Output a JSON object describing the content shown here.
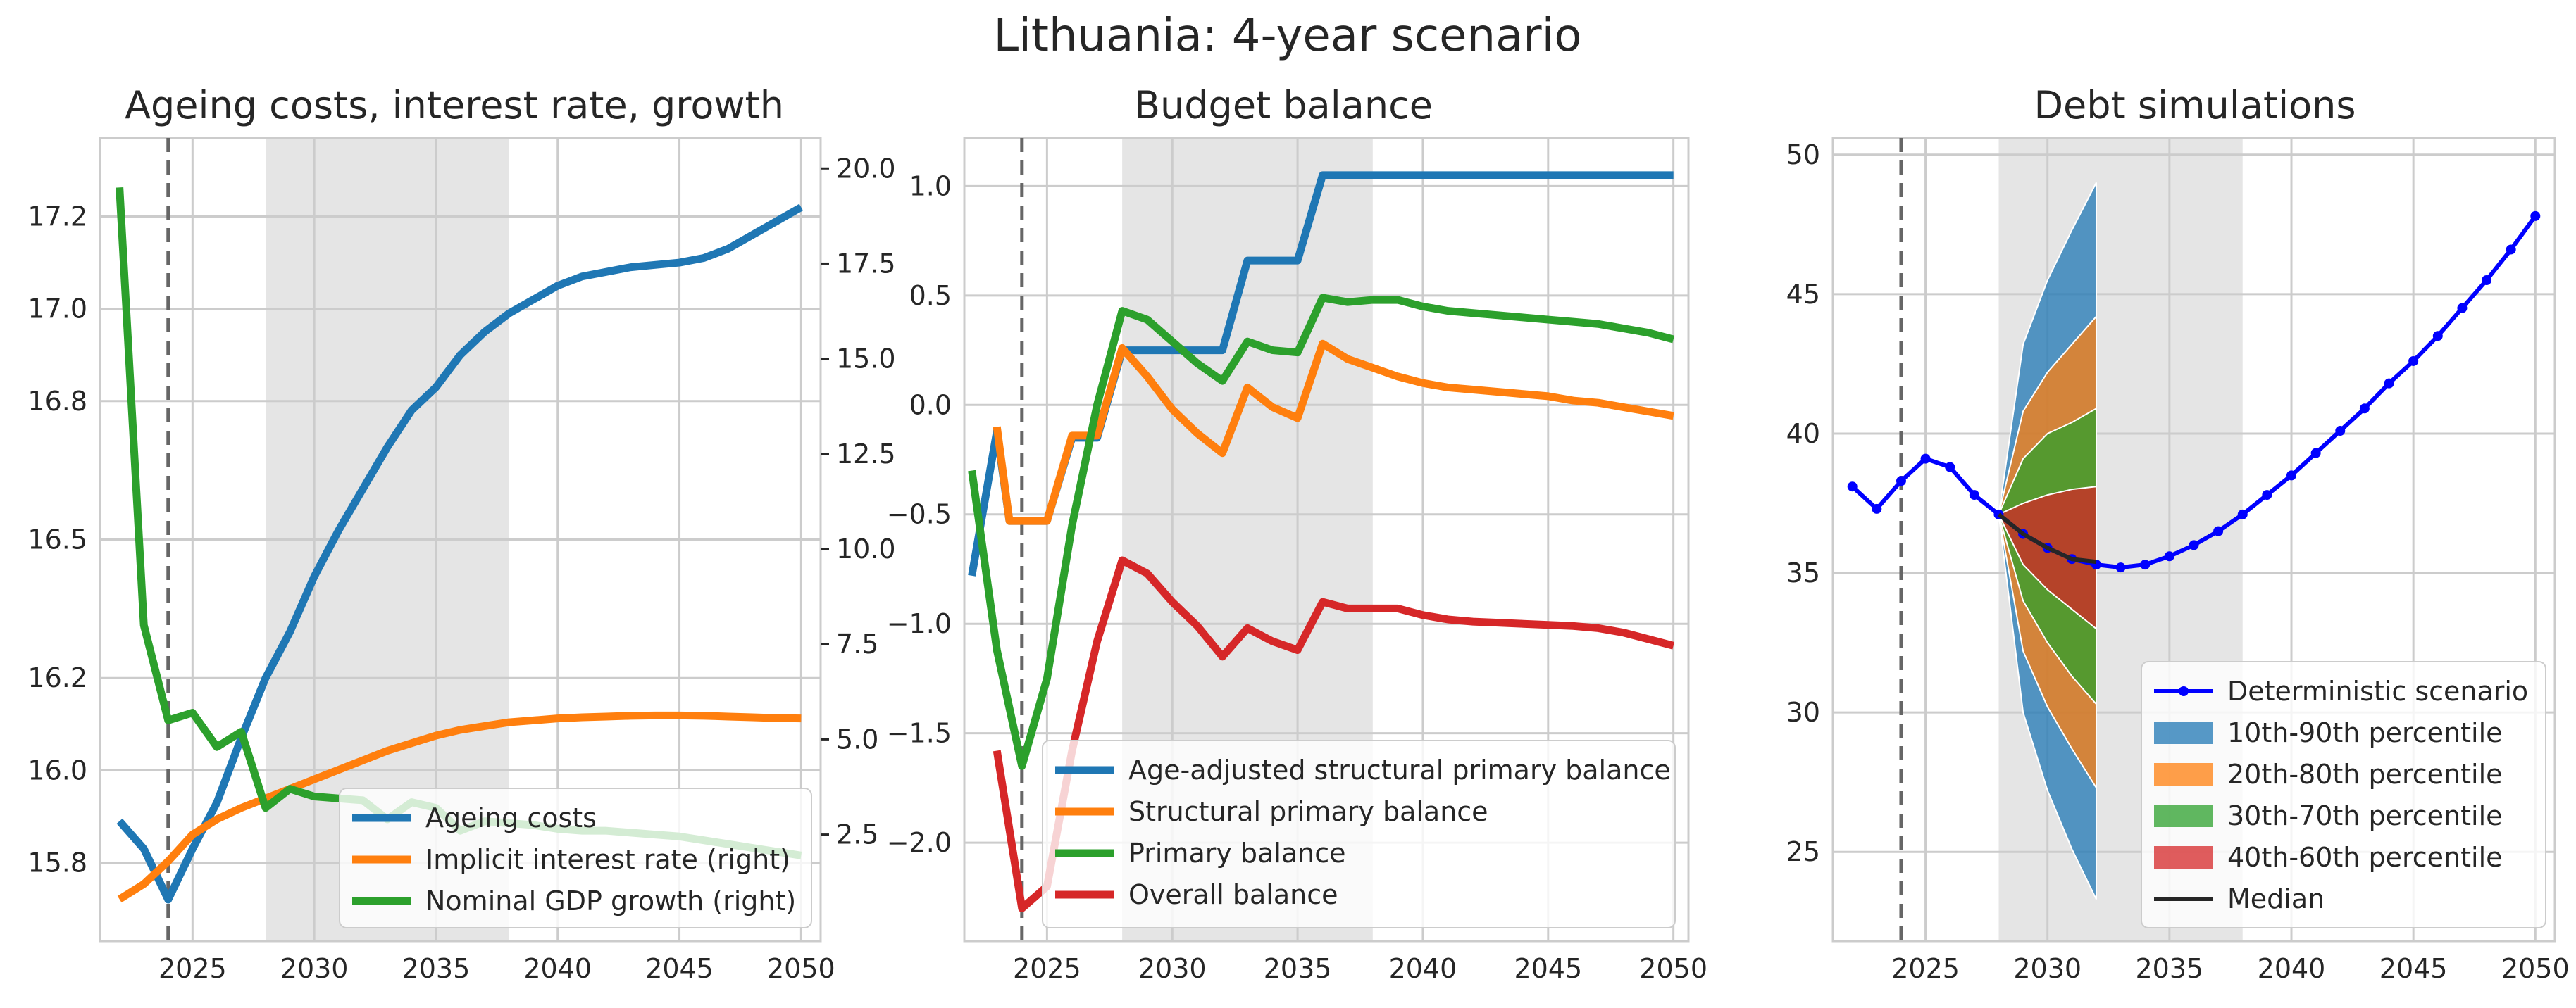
{
  "suptitle": "Lithuania: 4-year scenario",
  "colors": {
    "blue": "#1f77b4",
    "orange": "#ff7f0e",
    "green": "#2ca02c",
    "red": "#d62728",
    "deterministic": "#0000ff",
    "grid": "#cccccc",
    "shade": "#e5e5e5",
    "vline": "#666666"
  },
  "chart_data": [
    {
      "type": "line",
      "title": "Ageing costs, interest rate, growth",
      "xlim": [
        2021.2,
        2050.8
      ],
      "ylim": [
        15.63,
        17.37
      ],
      "ylim_right": [
        -0.3,
        20.8
      ],
      "x_ticks": [
        2025,
        2030,
        2035,
        2040,
        2045,
        2050
      ],
      "y_ticks": [
        15.8,
        16.0,
        16.2,
        16.5,
        16.8,
        17.0,
        17.2
      ],
      "y_tick_labels": [
        "15.8",
        "16.0",
        "16.2",
        "16.5",
        "16.8",
        "17.0",
        "17.2"
      ],
      "y_ticks_right": [
        2.5,
        5.0,
        7.5,
        10.0,
        12.5,
        15.0,
        17.5,
        20.0
      ],
      "y_tick_labels_right": [
        "2.5",
        "5.0",
        "7.5",
        "10.0",
        "12.5",
        "15.0",
        "17.5",
        "20.0"
      ],
      "shaded_region": [
        2028,
        2038
      ],
      "vline": 2024,
      "grid": true,
      "legend_position": "lower-right",
      "series": [
        {
          "name": "Ageing costs",
          "axis": "left",
          "color": "#1f77b4",
          "x": [
            2022,
            2023,
            2024,
            2025,
            2026,
            2027,
            2028,
            2029,
            2030,
            2031,
            2032,
            2033,
            2034,
            2035,
            2036,
            2037,
            2038,
            2039,
            2040,
            2041,
            2042,
            2043,
            2044,
            2045,
            2046,
            2047,
            2048,
            2049,
            2050
          ],
          "y": [
            15.89,
            15.83,
            15.72,
            15.83,
            15.93,
            16.07,
            16.2,
            16.3,
            16.42,
            16.52,
            16.61,
            16.7,
            16.78,
            16.83,
            16.9,
            16.95,
            16.99,
            17.02,
            17.05,
            17.07,
            17.08,
            17.09,
            17.095,
            17.1,
            17.11,
            17.13,
            17.16,
            17.19,
            17.22
          ]
        },
        {
          "name": "Implicit interest rate (right)",
          "axis": "right",
          "color": "#ff7f0e",
          "x": [
            2022,
            2023,
            2024,
            2025,
            2026,
            2027,
            2028,
            2029,
            2030,
            2031,
            2032,
            2033,
            2034,
            2035,
            2036,
            2037,
            2038,
            2039,
            2040,
            2041,
            2042,
            2043,
            2044,
            2045,
            2046,
            2047,
            2048,
            2049,
            2050
          ],
          "y": [
            0.8,
            1.2,
            1.8,
            2.5,
            2.9,
            3.2,
            3.45,
            3.7,
            3.95,
            4.2,
            4.45,
            4.7,
            4.9,
            5.1,
            5.25,
            5.35,
            5.45,
            5.5,
            5.55,
            5.58,
            5.6,
            5.62,
            5.63,
            5.63,
            5.62,
            5.6,
            5.58,
            5.56,
            5.55
          ]
        },
        {
          "name": "Nominal GDP growth (right)",
          "axis": "right",
          "color": "#2ca02c",
          "x": [
            2022,
            2023,
            2024,
            2025,
            2026,
            2027,
            2028,
            2029,
            2030,
            2031,
            2032,
            2033,
            2034,
            2035,
            2036,
            2037,
            2038,
            2039,
            2040,
            2041,
            2042,
            2043,
            2044,
            2045,
            2046,
            2047,
            2048,
            2049,
            2050
          ],
          "y": [
            19.5,
            8.0,
            5.5,
            5.7,
            4.8,
            5.2,
            3.2,
            3.7,
            3.5,
            3.45,
            3.4,
            2.9,
            3.35,
            3.2,
            2.6,
            2.85,
            2.8,
            2.75,
            2.65,
            2.6,
            2.6,
            2.55,
            2.5,
            2.45,
            2.35,
            2.25,
            2.15,
            2.05,
            1.95
          ]
        }
      ]
    },
    {
      "type": "line",
      "title": "Budget balance",
      "xlim": [
        2021.7,
        2050.6
      ],
      "ylim": [
        -2.45,
        1.22
      ],
      "x_ticks": [
        2025,
        2030,
        2035,
        2040,
        2045,
        2050
      ],
      "y_ticks": [
        -2.0,
        -1.5,
        -1.0,
        -0.5,
        0.0,
        0.5,
        1.0
      ],
      "y_tick_labels": [
        "−2.0",
        "−1.5",
        "−1.0",
        "−0.5",
        "0.0",
        "0.5",
        "1.0"
      ],
      "shaded_region": [
        2028,
        2038
      ],
      "vline": 2024,
      "grid": true,
      "legend_position": "lower-right",
      "series": [
        {
          "name": "Age-adjusted structural primary balance",
          "color": "#1f77b4",
          "x": [
            2022,
            2023,
            2023.5,
            2024,
            2025,
            2026,
            2027,
            2028,
            2029,
            2030,
            2031,
            2032,
            2033,
            2034,
            2035,
            2036,
            2037,
            2038,
            2039,
            2040,
            2041,
            2042,
            2043,
            2044,
            2045,
            2046,
            2047,
            2048,
            2049,
            2050
          ],
          "y": [
            -0.78,
            -0.12,
            -0.53,
            -0.53,
            -0.53,
            -0.15,
            -0.15,
            0.25,
            0.25,
            0.25,
            0.25,
            0.25,
            0.66,
            0.66,
            0.66,
            1.05,
            1.05,
            1.05,
            1.05,
            1.05,
            1.05,
            1.05,
            1.05,
            1.05,
            1.05,
            1.05,
            1.05,
            1.05,
            1.05,
            1.05
          ]
        },
        {
          "name": "Structural primary balance",
          "color": "#ff7f0e",
          "x": [
            2023,
            2023.5,
            2024,
            2025,
            2026,
            2027,
            2028,
            2029,
            2030,
            2031,
            2032,
            2033,
            2034,
            2035,
            2036,
            2037,
            2038,
            2039,
            2040,
            2041,
            2042,
            2043,
            2044,
            2045,
            2046,
            2047,
            2048,
            2049,
            2050
          ],
          "y": [
            -0.1,
            -0.53,
            -0.53,
            -0.53,
            -0.14,
            -0.14,
            0.26,
            0.13,
            -0.02,
            -0.13,
            -0.22,
            0.08,
            -0.01,
            -0.06,
            0.28,
            0.21,
            0.17,
            0.13,
            0.1,
            0.08,
            0.07,
            0.06,
            0.05,
            0.04,
            0.02,
            0.01,
            -0.01,
            -0.03,
            -0.05
          ]
        },
        {
          "name": "Primary balance",
          "color": "#2ca02c",
          "x": [
            2022,
            2023,
            2024,
            2025,
            2026,
            2027,
            2028,
            2029,
            2030,
            2031,
            2032,
            2033,
            2034,
            2035,
            2036,
            2037,
            2038,
            2039,
            2040,
            2041,
            2042,
            2043,
            2044,
            2045,
            2046,
            2047,
            2048,
            2049,
            2050
          ],
          "y": [
            -0.3,
            -1.12,
            -1.65,
            -1.25,
            -0.55,
            0.0,
            0.43,
            0.39,
            0.29,
            0.19,
            0.11,
            0.29,
            0.25,
            0.24,
            0.49,
            0.47,
            0.48,
            0.48,
            0.45,
            0.43,
            0.42,
            0.41,
            0.4,
            0.39,
            0.38,
            0.37,
            0.35,
            0.33,
            0.3
          ]
        },
        {
          "name": "Overall balance",
          "color": "#d62728",
          "x": [
            2023,
            2024,
            2025,
            2026,
            2027,
            2028,
            2029,
            2030,
            2031,
            2032,
            2033,
            2034,
            2035,
            2036,
            2037,
            2038,
            2039,
            2040,
            2041,
            2042,
            2043,
            2044,
            2045,
            2046,
            2047,
            2048,
            2049,
            2050
          ],
          "y": [
            -1.58,
            -2.3,
            -2.2,
            -1.58,
            -1.08,
            -0.71,
            -0.77,
            -0.9,
            -1.01,
            -1.15,
            -1.02,
            -1.08,
            -1.12,
            -0.9,
            -0.93,
            -0.93,
            -0.93,
            -0.96,
            -0.98,
            -0.99,
            -0.995,
            -1.0,
            -1.005,
            -1.01,
            -1.02,
            -1.04,
            -1.07,
            -1.1
          ]
        }
      ]
    },
    {
      "type": "area",
      "title": "Debt simulations",
      "xlim": [
        2021.2,
        2050.8
      ],
      "ylim": [
        21.8,
        50.6
      ],
      "x_ticks": [
        2025,
        2030,
        2035,
        2040,
        2045,
        2050
      ],
      "y_ticks": [
        25,
        30,
        35,
        40,
        45,
        50
      ],
      "y_tick_labels": [
        "25",
        "30",
        "35",
        "40",
        "45",
        "50"
      ],
      "shaded_region": [
        2028,
        2038
      ],
      "vline": 2024,
      "grid": true,
      "legend_position": "lower-right",
      "fan_x": [
        2028,
        2029,
        2030,
        2031,
        2032
      ],
      "fan": [
        {
          "name": "10th-90th percentile",
          "color": "#1f77b4",
          "low": [
            37.1,
            30.0,
            27.2,
            25.1,
            23.3
          ],
          "high": [
            37.1,
            43.2,
            45.5,
            47.3,
            49.0
          ]
        },
        {
          "name": "20th-80th percentile",
          "color": "#ff7f0e",
          "low": [
            37.1,
            32.2,
            30.2,
            28.7,
            27.3
          ],
          "high": [
            37.1,
            40.8,
            42.2,
            43.2,
            44.2
          ]
        },
        {
          "name": "30th-70th percentile",
          "color": "#2ca02c",
          "low": [
            37.1,
            34.0,
            32.5,
            31.3,
            30.3
          ],
          "high": [
            37.1,
            39.1,
            40.0,
            40.4,
            40.9
          ]
        },
        {
          "name": "40th-60th percentile",
          "color": "#d62728",
          "low": [
            37.1,
            35.3,
            34.4,
            33.7,
            33.0
          ],
          "high": [
            37.1,
            37.5,
            37.8,
            38.0,
            38.1
          ]
        }
      ],
      "series": [
        {
          "name": "Deterministic scenario",
          "color": "#0000ff",
          "marker": "o",
          "x": [
            2022,
            2023,
            2024,
            2025,
            2026,
            2027,
            2028,
            2029,
            2030,
            2031,
            2032,
            2033,
            2034,
            2035,
            2036,
            2037,
            2038,
            2039,
            2040,
            2041,
            2042,
            2043,
            2044,
            2045,
            2046,
            2047,
            2048,
            2049,
            2050
          ],
          "y": [
            38.1,
            37.3,
            38.3,
            39.1,
            38.8,
            37.8,
            37.1,
            36.4,
            35.9,
            35.5,
            35.3,
            35.2,
            35.3,
            35.6,
            36.0,
            36.5,
            37.1,
            37.8,
            38.5,
            39.3,
            40.1,
            40.9,
            41.8,
            42.6,
            43.5,
            44.5,
            45.5,
            46.6,
            47.8
          ]
        },
        {
          "name": "Median",
          "color": "#262626",
          "x": [
            2028,
            2029,
            2030,
            2031,
            2032
          ],
          "y": [
            37.1,
            36.4,
            35.9,
            35.5,
            35.4
          ]
        }
      ]
    }
  ]
}
